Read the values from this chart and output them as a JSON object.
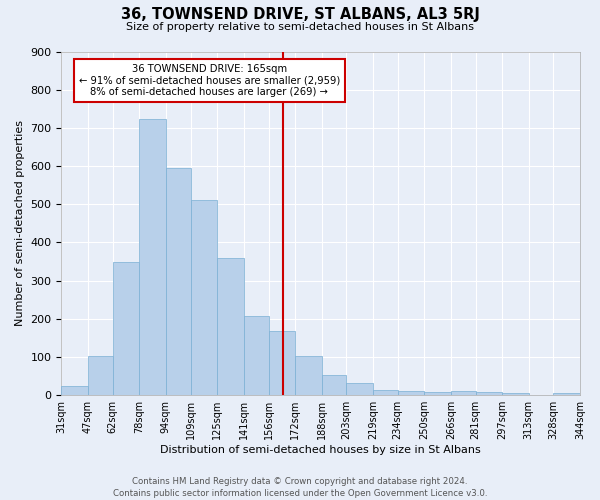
{
  "title": "36, TOWNSEND DRIVE, ST ALBANS, AL3 5RJ",
  "subtitle": "Size of property relative to semi-detached houses in St Albans",
  "xlabel": "Distribution of semi-detached houses by size in St Albans",
  "ylabel": "Number of semi-detached properties",
  "bins": [
    "31sqm",
    "47sqm",
    "62sqm",
    "78sqm",
    "94sqm",
    "109sqm",
    "125sqm",
    "141sqm",
    "156sqm",
    "172sqm",
    "188sqm",
    "203sqm",
    "219sqm",
    "234sqm",
    "250sqm",
    "266sqm",
    "281sqm",
    "297sqm",
    "313sqm",
    "328sqm",
    "344sqm"
  ],
  "values": [
    25,
    102,
    348,
    724,
    596,
    510,
    358,
    208,
    168,
    103,
    52,
    33,
    14,
    11,
    9,
    10,
    8,
    6,
    0,
    5
  ],
  "bar_color": "#b8d0ea",
  "bar_edge_color": "#7aafd4",
  "property_size": 165,
  "vline_color": "#cc0000",
  "annotation_line1": "36 TOWNSEND DRIVE: 165sqm",
  "annotation_line2": "← 91% of semi-detached houses are smaller (2,959)",
  "annotation_line3": "8% of semi-detached houses are larger (269) →",
  "annotation_box_color": "#cc0000",
  "bg_color": "#e8eef8",
  "grid_color": "#ffffff",
  "footer": "Contains HM Land Registry data © Crown copyright and database right 2024.\nContains public sector information licensed under the Open Government Licence v3.0.",
  "ylim": [
    0,
    900
  ],
  "yticks": [
    0,
    100,
    200,
    300,
    400,
    500,
    600,
    700,
    800,
    900
  ]
}
